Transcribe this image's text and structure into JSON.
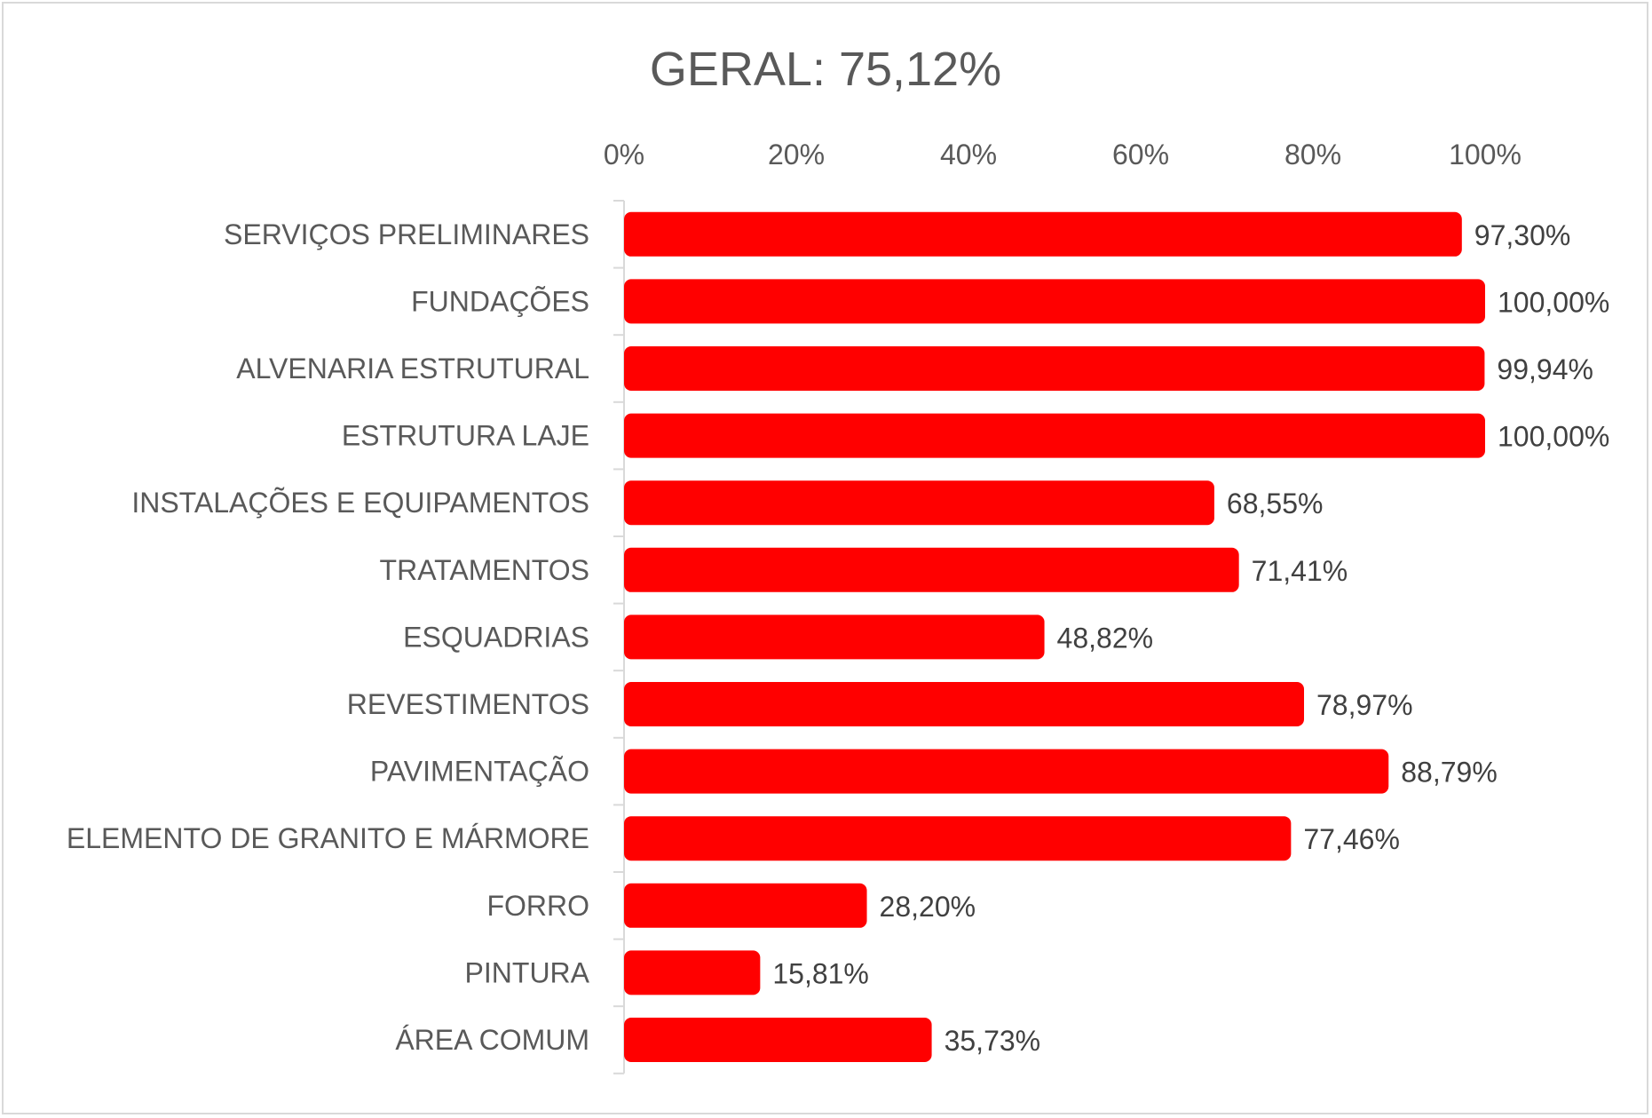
{
  "chart_data": {
    "type": "bar",
    "orientation": "horizontal",
    "title": "GERAL: 75,12%",
    "xlim": [
      0,
      100
    ],
    "x_ticks": [
      "0%",
      "20%",
      "40%",
      "60%",
      "80%",
      "100%"
    ],
    "x_tick_position": "top",
    "grid": false,
    "legend": "none",
    "bar_color": "#ff0000",
    "categories": [
      "SERVIÇOS PRELIMINARES",
      "FUNDAÇÕES",
      "ALVENARIA ESTRUTURAL",
      "ESTRUTURA LAJE",
      "INSTALAÇÕES E EQUIPAMENTOS",
      "TRATAMENTOS",
      "ESQUADRIAS",
      "REVESTIMENTOS",
      "PAVIMENTAÇÃO",
      "ELEMENTO DE GRANITO E MÁRMORE",
      "FORRO",
      "PINTURA",
      "ÁREA COMUM"
    ],
    "values": [
      97.3,
      100.0,
      99.94,
      100.0,
      68.55,
      71.41,
      48.82,
      78.97,
      88.79,
      77.46,
      28.2,
      15.81,
      35.73
    ],
    "data_labels": [
      "97,30%",
      "100,00%",
      "99,94%",
      "100,00%",
      "68,55%",
      "71,41%",
      "48,82%",
      "78,97%",
      "88,79%",
      "77,46%",
      "28,20%",
      "15,81%",
      "35,73%"
    ]
  }
}
